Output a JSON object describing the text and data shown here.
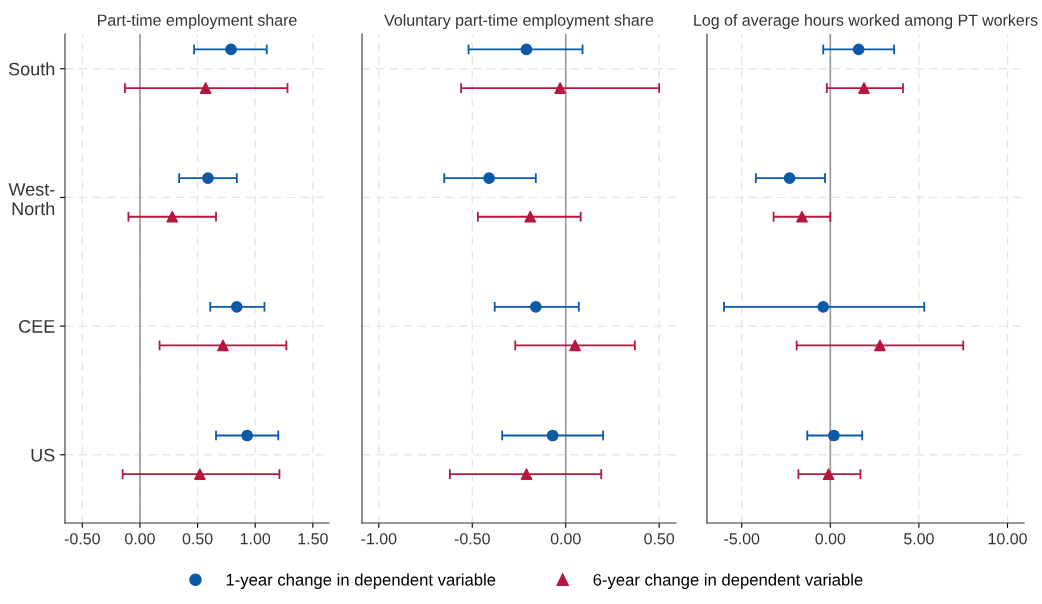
{
  "chart_data": [
    {
      "type": "scatter",
      "orientation": "horizontal",
      "title": "Part-time employment share",
      "categories": [
        "South",
        "West-\nNorth",
        "CEE",
        "US"
      ],
      "series": [
        {
          "name": "1-year change in dependent variable",
          "color": "#0a5aa8",
          "marker": "circle",
          "values": [
            0.79,
            0.59,
            0.84,
            0.93
          ],
          "errors": [
            [
              0.47,
              1.1
            ],
            [
              0.34,
              0.84
            ],
            [
              0.61,
              1.08
            ],
            [
              0.66,
              1.2
            ]
          ]
        },
        {
          "name": "6-year change in dependent variable",
          "color": "#b5173f",
          "marker": "triangle",
          "values": [
            0.57,
            0.28,
            0.72,
            0.52
          ],
          "errors": [
            [
              -0.13,
              1.28
            ],
            [
              -0.1,
              0.66
            ],
            [
              0.17,
              1.27
            ],
            [
              -0.15,
              1.21
            ]
          ]
        }
      ],
      "xlim": [
        -0.65,
        1.64
      ],
      "xticks": [
        {
          "value": -0.5,
          "label": "-0.50"
        },
        {
          "value": 0,
          "label": "0.00"
        },
        {
          "value": 0.5,
          "label": "0.50"
        },
        {
          "value": 1,
          "label": "1.00"
        },
        {
          "value": 1.5,
          "label": "1.50"
        }
      ],
      "ref_lines": [
        {
          "axis": "x",
          "value": 0,
          "color": "#999999"
        }
      ],
      "grid": true,
      "legend": "bottom"
    },
    {
      "type": "scatter",
      "orientation": "horizontal",
      "title": "Voluntary part-time employment share",
      "categories": [
        null,
        null,
        null,
        null
      ],
      "series": [
        {
          "color": "#0a5aa8",
          "marker": "circle",
          "values": [
            -0.21,
            -0.41,
            -0.16,
            -0.07
          ],
          "errors": [
            [
              -0.52,
              0.09
            ],
            [
              -0.65,
              -0.16
            ],
            [
              -0.38,
              0.07
            ],
            [
              -0.34,
              0.2
            ]
          ]
        },
        {
          "color": "#b5173f",
          "marker": "triangle",
          "values": [
            -0.03,
            -0.19,
            0.05,
            -0.21
          ],
          "errors": [
            [
              -0.56,
              0.5
            ],
            [
              -0.47,
              0.08
            ],
            [
              -0.27,
              0.37
            ],
            [
              -0.62,
              0.19
            ]
          ]
        }
      ],
      "xlim": [
        -1.09,
        0.59
      ],
      "xticks": [
        {
          "value": -1,
          "label": "-1.00"
        },
        {
          "value": -0.5,
          "label": "-0.50"
        },
        {
          "value": 0,
          "label": "0.00"
        },
        {
          "value": 0.5,
          "label": "0.50"
        }
      ],
      "ref_lines": [
        {
          "axis": "x",
          "value": 0,
          "color": "#999999"
        }
      ],
      "grid": true,
      "tick_labels": "x"
    },
    {
      "type": "scatter",
      "orientation": "horizontal",
      "title": "Log of average hours worked among PT workers",
      "categories": [
        null,
        null,
        null,
        null
      ],
      "series": [
        {
          "color": "#0a5aa8",
          "marker": "circle",
          "values": [
            1.6,
            -2.3,
            -0.4,
            0.2
          ],
          "errors": [
            [
              -0.4,
              3.6
            ],
            [
              -4.2,
              -0.3
            ],
            [
              -6.0,
              5.3
            ],
            [
              -1.3,
              1.8
            ]
          ]
        },
        {
          "color": "#b5173f",
          "marker": "triangle",
          "values": [
            1.9,
            -1.6,
            2.8,
            -0.1
          ],
          "errors": [
            [
              -0.2,
              4.1
            ],
            [
              -3.2,
              0.0
            ],
            [
              -1.9,
              7.5
            ],
            [
              -1.8,
              1.7
            ]
          ]
        }
      ],
      "xlim": [
        -6.96,
        10.93
      ],
      "xticks": [
        {
          "value": -5,
          "label": "-5.00"
        },
        {
          "value": 0,
          "label": "0.00"
        },
        {
          "value": 5,
          "label": "5.00"
        },
        {
          "value": 10,
          "label": "10.00"
        }
      ],
      "ref_lines": [
        {
          "axis": "x",
          "value": 0,
          "color": "#999999"
        }
      ],
      "grid": true,
      "tick_labels": "x"
    }
  ]
}
